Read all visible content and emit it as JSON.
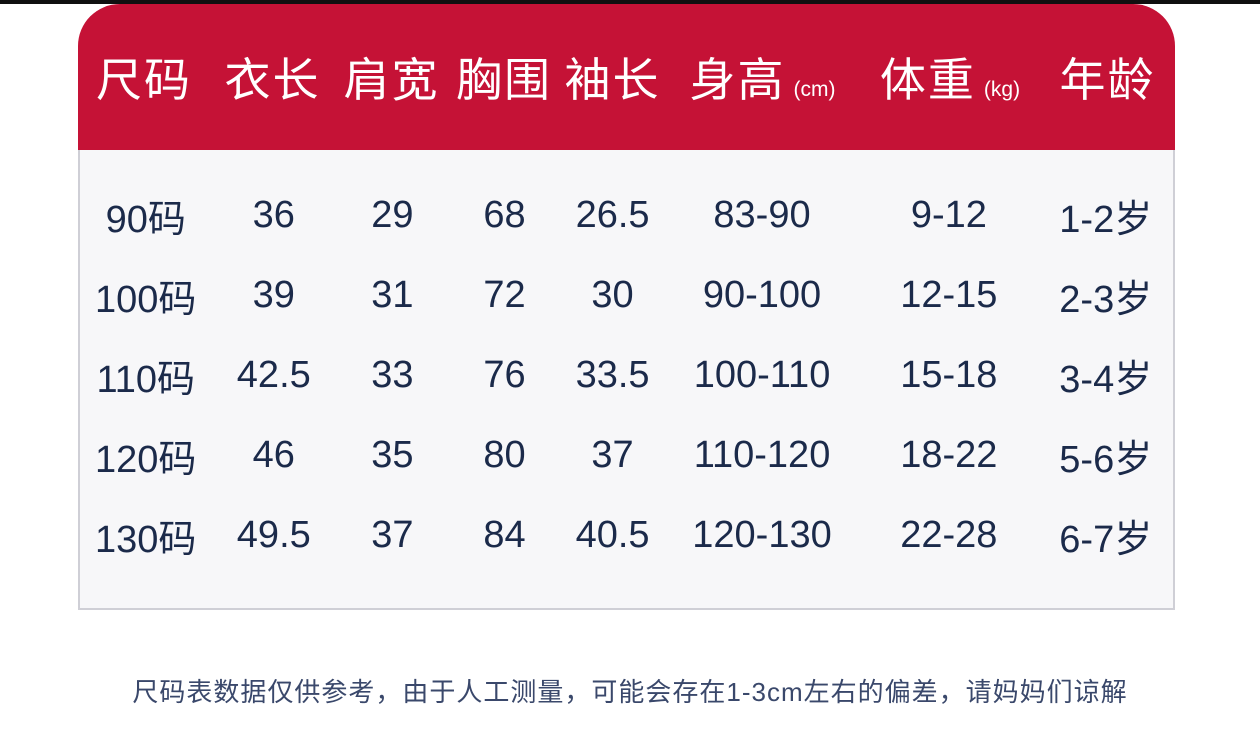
{
  "theme": {
    "header_bg": "#c51236",
    "header_text": "#ffffff",
    "body_bg": "#f7f7f9",
    "body_text": "#1b2a4a",
    "note_text": "#3a486b",
    "border": "#cfcfd6",
    "top_strip": "#101010"
  },
  "chart_data": {
    "type": "table",
    "title": "",
    "columns": [
      {
        "label": "尺码",
        "unit": ""
      },
      {
        "label": "衣长",
        "unit": ""
      },
      {
        "label": "肩宽",
        "unit": ""
      },
      {
        "label": "胸围",
        "unit": ""
      },
      {
        "label": "袖长",
        "unit": ""
      },
      {
        "label": "身高",
        "unit": "(cm)"
      },
      {
        "label": "体重",
        "unit": "(kg)"
      },
      {
        "label": "年龄",
        "unit": ""
      }
    ],
    "rows": [
      {
        "cells": [
          "90码",
          "36",
          "29",
          "68",
          "26.5",
          "83-90",
          "9-12",
          "1-2岁"
        ]
      },
      {
        "cells": [
          "100码",
          "39",
          "31",
          "72",
          "30",
          "90-100",
          "12-15",
          "2-3岁"
        ]
      },
      {
        "cells": [
          "110码",
          "42.5",
          "33",
          "76",
          "33.5",
          "100-110",
          "15-18",
          "3-4岁"
        ]
      },
      {
        "cells": [
          "120码",
          "46",
          "35",
          "80",
          "37",
          "110-120",
          "18-22",
          "5-6岁"
        ]
      },
      {
        "cells": [
          "130码",
          "49.5",
          "37",
          "84",
          "40.5",
          "120-130",
          "22-28",
          "6-7岁"
        ]
      }
    ],
    "note": "尺码表数据仅供参考，由于人工测量，可能会存在1-3cm左右的偏差，请妈妈们谅解"
  }
}
